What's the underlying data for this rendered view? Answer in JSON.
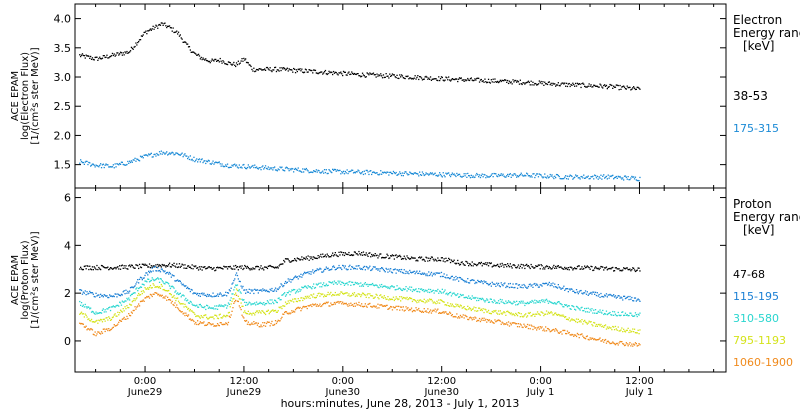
{
  "x_axis": {
    "tick_labels": [
      {
        "hour": 24,
        "line1": "0:00",
        "line2": "June29"
      },
      {
        "hour": 36,
        "line1": "12:00",
        "line2": "June29"
      },
      {
        "hour": 48,
        "line1": "0:00",
        "line2": "June30"
      },
      {
        "hour": 60,
        "line1": "12:00",
        "line2": "June30"
      },
      {
        "hour": 72,
        "line1": "0:00",
        "line2": "July 1"
      },
      {
        "hour": 84,
        "line1": "12:00",
        "line2": "July 1"
      }
    ],
    "title": "hours:minutes, June 28, 2013 - July  1, 2013"
  },
  "chart_data": [
    {
      "type": "scatter",
      "ylabel_lines": [
        "ACE EPAM",
        "log(Electron Flux)",
        "[1/(cm²s ster MeV)]"
      ],
      "ylim": [
        1.1,
        4.25
      ],
      "yticks": [
        1.5,
        2.0,
        2.5,
        3.0,
        3.5,
        4.0
      ],
      "ytick_labels": [
        "1.5",
        "2.0",
        "2.5",
        "3.0",
        "3.5",
        "4.0"
      ],
      "legend_title": [
        "Electron",
        "Energy ranges",
        "[keV]"
      ],
      "xlim_hours": [
        15.5,
        94.5
      ],
      "series": [
        {
          "name": "38-53",
          "color": "#000000",
          "points": [
            [
              16,
              3.38
            ],
            [
              18,
              3.32
            ],
            [
              20,
              3.38
            ],
            [
              22,
              3.44
            ],
            [
              24,
              3.78
            ],
            [
              25,
              3.85
            ],
            [
              26,
              3.92
            ],
            [
              27,
              3.85
            ],
            [
              28,
              3.75
            ],
            [
              29,
              3.55
            ],
            [
              30,
              3.4
            ],
            [
              31,
              3.32
            ],
            [
              32,
              3.28
            ],
            [
              33,
              3.3
            ],
            [
              34,
              3.25
            ],
            [
              35,
              3.22
            ],
            [
              36,
              3.32
            ],
            [
              37,
              3.14
            ],
            [
              40,
              3.14
            ],
            [
              45,
              3.1
            ],
            [
              50,
              3.05
            ],
            [
              55,
              3.02
            ],
            [
              60,
              2.98
            ],
            [
              65,
              2.95
            ],
            [
              70,
              2.92
            ],
            [
              75,
              2.88
            ],
            [
              80,
              2.85
            ],
            [
              84,
              2.8
            ]
          ]
        },
        {
          "name": "175-315",
          "color": "#1a8ad6",
          "points": [
            [
              16,
              1.56
            ],
            [
              18,
              1.5
            ],
            [
              20,
              1.48
            ],
            [
              22,
              1.55
            ],
            [
              24,
              1.65
            ],
            [
              26,
              1.72
            ],
            [
              28,
              1.7
            ],
            [
              30,
              1.6
            ],
            [
              32,
              1.55
            ],
            [
              34,
              1.5
            ],
            [
              36,
              1.48
            ],
            [
              40,
              1.44
            ],
            [
              45,
              1.4
            ],
            [
              50,
              1.38
            ],
            [
              55,
              1.36
            ],
            [
              60,
              1.34
            ],
            [
              65,
              1.32
            ],
            [
              70,
              1.33
            ],
            [
              75,
              1.3
            ],
            [
              80,
              1.3
            ],
            [
              84,
              1.27
            ]
          ]
        }
      ]
    },
    {
      "type": "scatter",
      "ylabel_lines": [
        "ACE EPAM",
        "log(Proton Flux)",
        "[1/(cm²s ster MeV)]"
      ],
      "ylim": [
        -1.3,
        6.4
      ],
      "yticks": [
        0,
        2,
        4,
        6
      ],
      "ytick_labels": [
        "0",
        "2",
        "4",
        "6"
      ],
      "legend_title": [
        "Proton",
        "Energy ranges",
        "[keV]"
      ],
      "xlim_hours": [
        15.5,
        94.5
      ],
      "series": [
        {
          "name": "47-68",
          "color": "#000000",
          "points": [
            [
              16,
              3.1
            ],
            [
              18,
              3.1
            ],
            [
              20,
              3.1
            ],
            [
              22,
              3.12
            ],
            [
              24,
              3.15
            ],
            [
              26,
              3.2
            ],
            [
              28,
              3.18
            ],
            [
              30,
              3.1
            ],
            [
              32,
              3.05
            ],
            [
              34,
              3.08
            ],
            [
              36,
              3.1
            ],
            [
              38,
              3.08
            ],
            [
              40,
              3.1
            ],
            [
              41,
              3.4
            ],
            [
              44,
              3.5
            ],
            [
              47,
              3.65
            ],
            [
              50,
              3.7
            ],
            [
              52,
              3.6
            ],
            [
              54,
              3.55
            ],
            [
              57,
              3.45
            ],
            [
              60,
              3.45
            ],
            [
              62,
              3.3
            ],
            [
              64,
              3.25
            ],
            [
              66,
              3.2
            ],
            [
              70,
              3.15
            ],
            [
              75,
              3.1
            ],
            [
              80,
              3.05
            ],
            [
              84,
              3.0
            ]
          ]
        },
        {
          "name": "115-195",
          "color": "#1a7fd4",
          "points": [
            [
              16,
              2.1
            ],
            [
              18,
              1.95
            ],
            [
              20,
              1.9
            ],
            [
              22,
              2.1
            ],
            [
              23,
              2.5
            ],
            [
              24,
              2.8
            ],
            [
              25,
              3.05
            ],
            [
              26,
              3.0
            ],
            [
              27,
              2.8
            ],
            [
              28,
              2.5
            ],
            [
              30,
              2.0
            ],
            [
              32,
              1.95
            ],
            [
              34,
              2.0
            ],
            [
              35,
              2.8
            ],
            [
              36,
              2.1
            ],
            [
              38,
              2.1
            ],
            [
              40,
              2.2
            ],
            [
              41,
              2.5
            ],
            [
              44,
              2.9
            ],
            [
              47,
              3.1
            ],
            [
              50,
              3.1
            ],
            [
              53,
              3.0
            ],
            [
              56,
              2.9
            ],
            [
              60,
              2.8
            ],
            [
              62,
              2.6
            ],
            [
              66,
              2.4
            ],
            [
              70,
              2.3
            ],
            [
              73,
              2.4
            ],
            [
              76,
              2.1
            ],
            [
              80,
              1.9
            ],
            [
              84,
              1.75
            ]
          ]
        },
        {
          "name": "310-580",
          "color": "#29d6cf",
          "points": [
            [
              16,
              1.6
            ],
            [
              18,
              1.2
            ],
            [
              20,
              1.4
            ],
            [
              22,
              1.8
            ],
            [
              23,
              2.2
            ],
            [
              24,
              2.5
            ],
            [
              25,
              2.6
            ],
            [
              26,
              2.55
            ],
            [
              27,
              2.3
            ],
            [
              28,
              2.0
            ],
            [
              30,
              1.5
            ],
            [
              32,
              1.4
            ],
            [
              34,
              1.5
            ],
            [
              35,
              2.4
            ],
            [
              36,
              1.6
            ],
            [
              38,
              1.6
            ],
            [
              40,
              1.7
            ],
            [
              41,
              2.0
            ],
            [
              44,
              2.3
            ],
            [
              47,
              2.45
            ],
            [
              50,
              2.4
            ],
            [
              53,
              2.3
            ],
            [
              56,
              2.2
            ],
            [
              60,
              2.1
            ],
            [
              62,
              1.9
            ],
            [
              66,
              1.7
            ],
            [
              70,
              1.6
            ],
            [
              73,
              1.7
            ],
            [
              76,
              1.4
            ],
            [
              80,
              1.2
            ],
            [
              84,
              1.1
            ]
          ]
        },
        {
          "name": "795-1193",
          "color": "#d4e31a",
          "points": [
            [
              16,
              1.2
            ],
            [
              18,
              0.8
            ],
            [
              20,
              1.0
            ],
            [
              22,
              1.5
            ],
            [
              23,
              1.9
            ],
            [
              24,
              2.2
            ],
            [
              25,
              2.35
            ],
            [
              26,
              2.3
            ],
            [
              27,
              2.0
            ],
            [
              28,
              1.7
            ],
            [
              30,
              1.1
            ],
            [
              32,
              1.0
            ],
            [
              34,
              1.1
            ],
            [
              35,
              2.2
            ],
            [
              36,
              1.2
            ],
            [
              38,
              1.2
            ],
            [
              40,
              1.3
            ],
            [
              41,
              1.6
            ],
            [
              44,
              1.9
            ],
            [
              47,
              2.0
            ],
            [
              50,
              1.95
            ],
            [
              53,
              1.85
            ],
            [
              56,
              1.75
            ],
            [
              60,
              1.65
            ],
            [
              62,
              1.45
            ],
            [
              66,
              1.25
            ],
            [
              70,
              1.1
            ],
            [
              73,
              1.2
            ],
            [
              76,
              0.9
            ],
            [
              80,
              0.6
            ],
            [
              84,
              0.4
            ]
          ]
        },
        {
          "name": "1060-1900",
          "color": "#f08a1c",
          "points": [
            [
              16,
              0.8
            ],
            [
              18,
              0.3
            ],
            [
              20,
              0.6
            ],
            [
              22,
              1.1
            ],
            [
              23,
              1.5
            ],
            [
              24,
              1.8
            ],
            [
              25,
              2.0
            ],
            [
              26,
              1.95
            ],
            [
              27,
              1.7
            ],
            [
              28,
              1.4
            ],
            [
              30,
              0.8
            ],
            [
              32,
              0.7
            ],
            [
              34,
              0.8
            ],
            [
              35,
              1.9
            ],
            [
              36,
              0.8
            ],
            [
              38,
              0.7
            ],
            [
              40,
              0.8
            ],
            [
              41,
              1.2
            ],
            [
              44,
              1.5
            ],
            [
              47,
              1.6
            ],
            [
              50,
              1.55
            ],
            [
              53,
              1.45
            ],
            [
              56,
              1.35
            ],
            [
              60,
              1.25
            ],
            [
              62,
              1.05
            ],
            [
              66,
              0.85
            ],
            [
              70,
              0.65
            ],
            [
              73,
              0.5
            ],
            [
              76,
              0.3
            ],
            [
              80,
              0.0
            ],
            [
              84,
              -0.15
            ]
          ]
        }
      ]
    }
  ]
}
